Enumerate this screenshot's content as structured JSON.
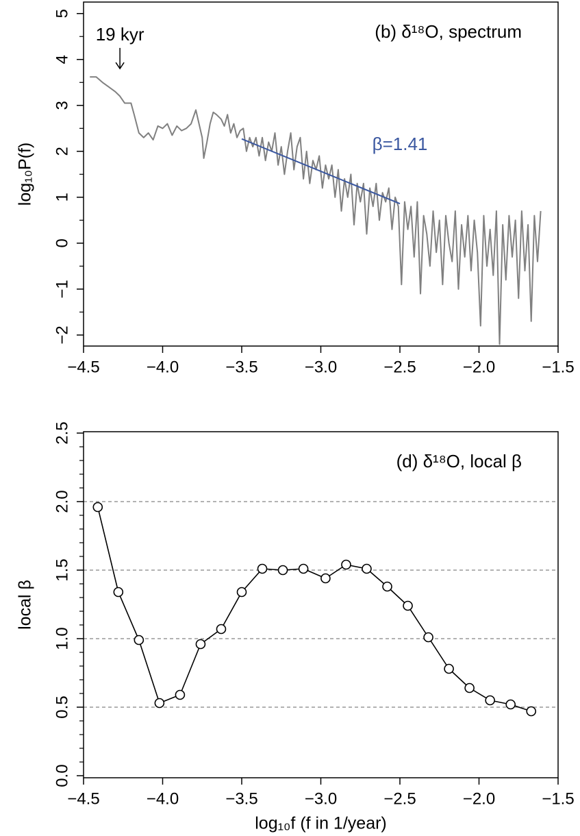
{
  "chart_data": [
    {
      "type": "line",
      "title": "(b) δ¹⁸O, spectrum",
      "y_label": "log₁₀P(f)",
      "xlim": [
        -4.5,
        -1.5
      ],
      "ylim": [
        -2.24,
        5.25
      ],
      "xticks": [
        {
          "value": -4.5,
          "label": "−4.5"
        },
        {
          "value": -4,
          "label": "−4.0"
        },
        {
          "value": -3.5,
          "label": "−3.5"
        },
        {
          "value": -3,
          "label": "−3.0"
        },
        {
          "value": -2.5,
          "label": "−2.5"
        },
        {
          "value": -2,
          "label": "−2.0"
        },
        {
          "value": -1.5,
          "label": "−1.5"
        }
      ],
      "yticks": [
        {
          "value": -2,
          "label": "−2"
        },
        {
          "value": -1,
          "label": "−1"
        },
        0,
        1,
        2,
        3,
        4,
        5
      ],
      "yminorticks": [
        -1.5,
        -0.5,
        0.5,
        1.5,
        2.5,
        3.5,
        4.5
      ],
      "series": [
        {
          "color": "#808080",
          "marker": "none",
          "x": [
            -4.46,
            -4.42,
            -4.38,
            -4.34,
            -4.3,
            -4.27,
            -4.24,
            -4.2,
            -4.18,
            -4.15,
            -4.12,
            -4.09,
            -4.06,
            -4.03,
            -4,
            -3.97,
            -3.94,
            -3.91,
            -3.88,
            -3.85,
            -3.82,
            -3.79,
            -3.77,
            -3.75,
            -3.74,
            -3.72,
            -3.7,
            -3.68,
            -3.66,
            -3.63,
            -3.61,
            -3.59,
            -3.57,
            -3.55,
            -3.53,
            -3.51,
            -3.49,
            -3.47,
            -3.45,
            -3.43,
            -3.41,
            -3.39,
            -3.37,
            -3.35,
            -3.33,
            -3.31,
            -3.29,
            -3.27,
            -3.25,
            -3.23,
            -3.21,
            -3.19,
            -3.17,
            -3.15,
            -3.13,
            -3.11,
            -3.09,
            -3.07,
            -3.05,
            -3.03,
            -3.01,
            -2.99,
            -2.97,
            -2.95,
            -2.93,
            -2.91,
            -2.89,
            -2.87,
            -2.85,
            -2.83,
            -2.81,
            -2.79,
            -2.77,
            -2.75,
            -2.73,
            -2.71,
            -2.69,
            -2.67,
            -2.65,
            -2.63,
            -2.61,
            -2.59,
            -2.57,
            -2.55,
            -2.53,
            -2.51,
            -2.49,
            -2.47,
            -2.45,
            -2.43,
            -2.41,
            -2.39,
            -2.37,
            -2.35,
            -2.33,
            -2.31,
            -2.29,
            -2.27,
            -2.25,
            -2.23,
            -2.21,
            -2.19,
            -2.17,
            -2.15,
            -2.13,
            -2.11,
            -2.09,
            -2.07,
            -2.05,
            -2.03,
            -2.01,
            -1.99,
            -1.97,
            -1.95,
            -1.93,
            -1.91,
            -1.89,
            -1.87,
            -1.85,
            -1.83,
            -1.81,
            -1.79,
            -1.77,
            -1.75,
            -1.73,
            -1.71,
            -1.69,
            -1.67,
            -1.65,
            -1.63,
            -1.61
          ],
          "values": [
            3.62,
            3.62,
            3.5,
            3.4,
            3.3,
            3.2,
            3.05,
            3.05,
            2.8,
            2.4,
            2.3,
            2.4,
            2.25,
            2.55,
            2.5,
            2.6,
            2.35,
            2.55,
            2.45,
            2.5,
            2.6,
            2.9,
            2.6,
            2.3,
            1.85,
            2.2,
            2.6,
            2.85,
            2.8,
            2.7,
            2.55,
            2.8,
            2.4,
            2.6,
            2.3,
            2.45,
            2.5,
            2.0,
            2.3,
            2.1,
            2.3,
            1.9,
            2.3,
            1.8,
            2.2,
            2.0,
            2.4,
            1.7,
            2.1,
            1.5,
            2.0,
            2.4,
            1.6,
            2.1,
            2.3,
            1.4,
            2.0,
            1.3,
            1.8,
            1.6,
            1.9,
            1.2,
            1.7,
            1.4,
            1.7,
            1.0,
            1.6,
            0.7,
            1.4,
            1.0,
            1.5,
            0.4,
            1.3,
            0.9,
            1.3,
            0.2,
            1.2,
            0.8,
            1.3,
            0.5,
            1.1,
            0.9,
            1.2,
            0.3,
            1.0,
            0.8,
            -0.9,
            0.9,
            0.3,
            0.8,
            -0.3,
            0.9,
            -1.1,
            0.6,
            0.2,
            -0.5,
            0.7,
            -0.2,
            0.5,
            -0.9,
            0.6,
            0.0,
            -0.4,
            0.7,
            -1.0,
            0.4,
            -0.3,
            0.6,
            -0.6,
            0.5,
            -0.2,
            -1.8,
            0.6,
            -0.5,
            0.3,
            -0.7,
            0.7,
            -2.2,
            0.4,
            -0.8,
            0.6,
            -0.3,
            0.5,
            -1.2,
            0.7,
            -0.6,
            0.4,
            -1.7,
            0.6,
            -0.4,
            0.7
          ]
        },
        {
          "color": "#3a57a0",
          "marker": "none",
          "x": [
            -3.5,
            -2.5
          ],
          "values": [
            2.27,
            0.86
          ]
        }
      ],
      "annotations": [
        {
          "text": "19 kyr",
          "x": -4.27,
          "y": 4.52,
          "arrow_to": 3.8,
          "color": "#000000"
        },
        {
          "text": "β=1.41",
          "x": -2.5,
          "y": 2.13,
          "color": "#3a57a0"
        }
      ]
    },
    {
      "type": "line",
      "title": "(d) δ¹⁸O, local β",
      "y_label": "local β",
      "x_label": "log₁₀f  (f in 1/year)",
      "xlim": [
        -4.5,
        -1.5
      ],
      "ylim": [
        -0.015,
        2.51
      ],
      "xticks": [
        {
          "value": -4.5,
          "label": "−4.5"
        },
        {
          "value": -4,
          "label": "−4.0"
        },
        {
          "value": -3.5,
          "label": "−3.5"
        },
        {
          "value": -3,
          "label": "−3.0"
        },
        {
          "value": -2.5,
          "label": "−2.5"
        },
        {
          "value": -2,
          "label": "−2.0"
        },
        {
          "value": -1.5,
          "label": "−1.5"
        }
      ],
      "yticks": [
        {
          "value": 0,
          "label": "0.0"
        },
        0.5,
        {
          "value": 1,
          "label": "1.0"
        },
        1.5,
        {
          "value": 2,
          "label": "2.0"
        },
        2.5
      ],
      "yminorticks": [
        0.1,
        0.2,
        0.3,
        0.4,
        0.6,
        0.7,
        0.8,
        0.9,
        1.1,
        1.2,
        1.3,
        1.4,
        1.6,
        1.7,
        1.8,
        1.9,
        2.1,
        2.2,
        2.3,
        2.4
      ],
      "hlines": [
        0.5,
        1,
        1.5,
        2
      ],
      "series": [
        {
          "color": "#000000",
          "marker": "circle",
          "x": [
            -4.41,
            -4.28,
            -4.15,
            -4.02,
            -3.89,
            -3.76,
            -3.63,
            -3.5,
            -3.37,
            -3.24,
            -3.11,
            -2.97,
            -2.84,
            -2.71,
            -2.58,
            -2.45,
            -2.32,
            -2.19,
            -2.06,
            -1.93,
            -1.8,
            -1.67
          ],
          "values": [
            1.96,
            1.34,
            0.99,
            0.53,
            0.59,
            0.96,
            1.07,
            1.34,
            1.51,
            1.5,
            1.51,
            1.44,
            1.54,
            1.51,
            1.38,
            1.24,
            1.01,
            0.78,
            0.64,
            0.55,
            0.52,
            0.47
          ]
        }
      ]
    }
  ]
}
